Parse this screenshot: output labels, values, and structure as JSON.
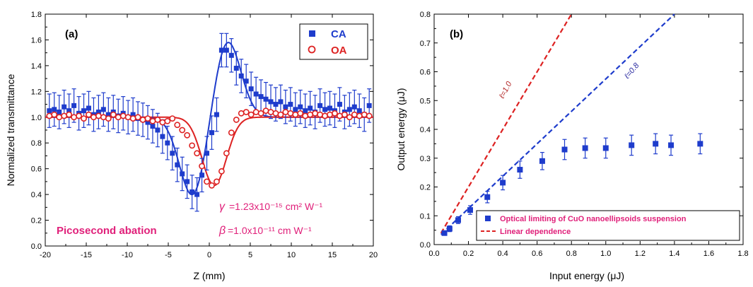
{
  "colors": {
    "blue": "#1e3ccc",
    "red": "#dd2222",
    "magenta": "#e0207a",
    "darkred": "#b02020",
    "darkblue": "#2a2aa0"
  },
  "chart_data": [
    {
      "panel": "(a)",
      "type": "scatter",
      "xlabel": "Z (mm)",
      "ylabel": "Normalized transmittance",
      "xlim": [
        -20,
        20
      ],
      "ylim": [
        0.0,
        1.8
      ],
      "xticks": [
        -20,
        -15,
        -10,
        -5,
        0,
        5,
        10,
        15,
        20
      ],
      "yticks": [
        0.0,
        0.2,
        0.4,
        0.6,
        0.8,
        1.0,
        1.2,
        1.4,
        1.6,
        1.8
      ],
      "legend": {
        "position": "top-right",
        "entries": [
          "CA",
          "OA"
        ]
      },
      "annotations": {
        "gamma": "=1.23x10⁻¹⁵ cm² W⁻¹",
        "beta": "=1.0x10⁻¹¹ cm W⁻¹",
        "regime": "Picosecond abation"
      },
      "series": [
        {
          "name": "CA",
          "marker": "filled-square",
          "error": 0.13,
          "x": [
            -19.5,
            -18.9,
            -18.3,
            -17.7,
            -17.1,
            -16.5,
            -15.9,
            -15.3,
            -14.7,
            -14.1,
            -13.5,
            -12.9,
            -12.3,
            -11.7,
            -11.1,
            -10.5,
            -9.9,
            -9.3,
            -8.7,
            -8.1,
            -7.5,
            -6.9,
            -6.3,
            -5.7,
            -5.1,
            -4.5,
            -3.9,
            -3.3,
            -2.7,
            -2.1,
            -1.5,
            -0.9,
            -0.3,
            0.3,
            0.9,
            1.5,
            2.1,
            2.7,
            3.3,
            3.9,
            4.5,
            5.1,
            5.7,
            6.3,
            6.9,
            7.5,
            8.1,
            8.7,
            9.3,
            9.9,
            10.5,
            11.1,
            11.7,
            12.3,
            12.9,
            13.5,
            14.1,
            14.7,
            15.3,
            15.9,
            16.5,
            17.1,
            17.7,
            18.3,
            18.9,
            19.5
          ],
          "y": [
            1.05,
            1.06,
            1.04,
            1.08,
            1.05,
            1.09,
            1.03,
            1.05,
            1.07,
            1.02,
            1.04,
            1.06,
            1.02,
            1.04,
            1.01,
            1.03,
            1.0,
            1.02,
            0.99,
            0.98,
            0.96,
            0.93,
            0.9,
            0.85,
            0.8,
            0.72,
            0.63,
            0.56,
            0.5,
            0.42,
            0.4,
            0.55,
            0.72,
            0.88,
            1.02,
            1.52,
            1.52,
            1.48,
            1.38,
            1.32,
            1.28,
            1.22,
            1.18,
            1.16,
            1.14,
            1.12,
            1.1,
            1.12,
            1.08,
            1.1,
            1.06,
            1.08,
            1.05,
            1.07,
            1.04,
            1.09,
            1.06,
            1.07,
            1.05,
            1.1,
            1.04,
            1.06,
            1.08,
            1.05,
            1.02,
            1.09
          ]
        },
        {
          "name": "OA",
          "marker": "open-circle",
          "x": [
            -19.5,
            -18.9,
            -18.3,
            -17.7,
            -17.1,
            -16.5,
            -15.9,
            -15.3,
            -14.7,
            -14.1,
            -13.5,
            -12.9,
            -12.3,
            -11.7,
            -11.1,
            -10.5,
            -9.9,
            -9.3,
            -8.7,
            -8.1,
            -7.5,
            -6.9,
            -6.3,
            -5.7,
            -5.1,
            -4.5,
            -3.9,
            -3.3,
            -2.7,
            -2.1,
            -1.5,
            -0.9,
            -0.3,
            0.3,
            0.9,
            1.5,
            2.1,
            2.7,
            3.3,
            3.9,
            4.5,
            5.1,
            5.7,
            6.3,
            6.9,
            7.5,
            8.1,
            8.7,
            9.3,
            9.9,
            10.5,
            11.1,
            11.7,
            12.3,
            12.9,
            13.5,
            14.1,
            14.7,
            15.3,
            15.9,
            16.5,
            17.1,
            17.7,
            18.3,
            18.9,
            19.5
          ],
          "y": [
            1.01,
            1.02,
            1.0,
            1.01,
            1.02,
            1.0,
            1.01,
            0.99,
            1.02,
            1.0,
            1.01,
            1.0,
            0.99,
            1.02,
            1.0,
            1.01,
            1.0,
            0.99,
            1.0,
            0.98,
            0.99,
            0.97,
            0.98,
            0.96,
            0.97,
            0.99,
            0.94,
            0.9,
            0.86,
            0.78,
            0.72,
            0.62,
            0.5,
            0.47,
            0.5,
            0.58,
            0.72,
            0.88,
            0.98,
            1.03,
            1.04,
            1.02,
            1.04,
            1.03,
            1.05,
            1.04,
            1.03,
            1.02,
            1.04,
            1.03,
            1.02,
            1.03,
            1.01,
            1.02,
            1.03,
            1.02,
            1.01,
            1.02,
            1.03,
            1.01,
            1.02,
            1.0,
            1.02,
            1.01,
            1.02,
            1.01
          ]
        }
      ]
    },
    {
      "panel": "(b)",
      "type": "scatter",
      "xlabel": "Input energy (μJ)",
      "ylabel": "Output energy (μJ)",
      "xlim": [
        0.0,
        1.8
      ],
      "ylim": [
        0.0,
        0.8
      ],
      "xticks": [
        0.0,
        0.2,
        0.4,
        0.6,
        0.8,
        1.0,
        1.2,
        1.4,
        1.6,
        1.8
      ],
      "yticks": [
        0.0,
        0.1,
        0.2,
        0.3,
        0.4,
        0.5,
        0.6,
        0.7,
        0.8
      ],
      "legend": {
        "position": "bottom-right",
        "entries": [
          "Optical limiting of CuO nanoellipsoids suspension",
          "Linear dependence"
        ]
      },
      "line_labels": {
        "slope_1": "ℓ=1.0",
        "slope_08": "ℓ=0.8"
      },
      "series": [
        {
          "name": "Optical limiting of CuO nanoellipsoids suspension",
          "marker": "filled-square",
          "x": [
            0.06,
            0.09,
            0.14,
            0.21,
            0.31,
            0.4,
            0.5,
            0.63,
            0.76,
            0.88,
            1.0,
            1.15,
            1.29,
            1.38,
            1.55
          ],
          "y": [
            0.04,
            0.055,
            0.085,
            0.12,
            0.165,
            0.215,
            0.26,
            0.29,
            0.33,
            0.335,
            0.335,
            0.345,
            0.35,
            0.345,
            0.35
          ],
          "err": [
            0.005,
            0.01,
            0.012,
            0.015,
            0.02,
            0.025,
            0.03,
            0.03,
            0.035,
            0.035,
            0.035,
            0.035,
            0.035,
            0.035,
            0.035
          ]
        },
        {
          "name": "Linear dependence",
          "style": "dashed",
          "x": [
            0.04,
            0.8
          ],
          "y": [
            0.04,
            0.8
          ]
        },
        {
          "name": "ℓ=0.8",
          "style": "dashed",
          "x": [
            0.04,
            1.4
          ],
          "y": [
            0.035,
            0.8
          ]
        }
      ]
    }
  ]
}
